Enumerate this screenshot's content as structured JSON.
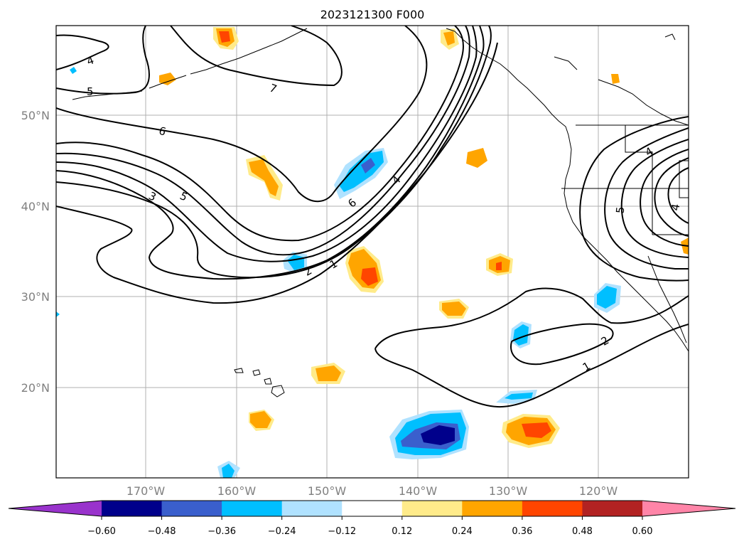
{
  "title": "2023121300 F000",
  "lat_labels": [
    "50°N",
    "40°N",
    "30°N",
    "20°N"
  ],
  "lon_labels": [
    "170°W",
    "160°W",
    "150°W",
    "140°W",
    "130°W",
    "120°W"
  ],
  "colorbar": {
    "ticks": [
      "−0.60",
      "−0.48",
      "−0.36",
      "−0.24",
      "−0.12",
      "0.12",
      "0.24",
      "0.36",
      "0.48",
      "0.60"
    ],
    "colors": [
      "#9933cc",
      "#00008b",
      "#3a5fcd",
      "#00bfff",
      "#b0e2ff",
      "#ffffff",
      "#ffeb8a",
      "#ffa500",
      "#ff4500",
      "#b22222",
      "#ff85a8"
    ]
  },
  "contour_labels": [
    "4",
    "5",
    "7",
    "6",
    "3",
    "5",
    "6",
    "4",
    "2",
    "1",
    "2",
    "1",
    "4",
    "5",
    "4"
  ]
}
